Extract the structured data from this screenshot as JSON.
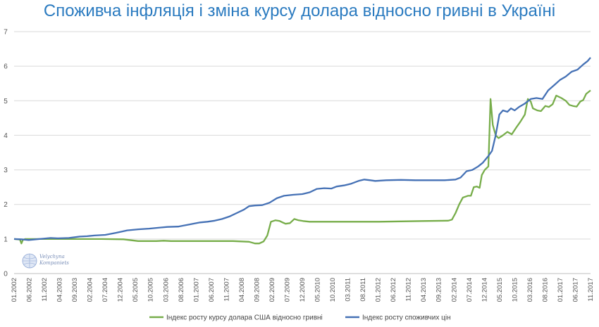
{
  "chart_data": {
    "type": "line",
    "title": "Споживча інфляція і зміна курсу долара відносно гривні в Україні",
    "ylim": [
      0,
      7
    ],
    "yticks": [
      0,
      1,
      2,
      3,
      4,
      5,
      6,
      7
    ],
    "grid": true,
    "legend_position": "bottom",
    "x_tick_labels": [
      "01.2002",
      "06.2002",
      "11.2002",
      "04.2003",
      "09.2003",
      "02.2004",
      "07.2004",
      "12.2004",
      "05.2005",
      "10.2005",
      "03.2006",
      "08.2006",
      "01.2007",
      "06.2007",
      "11.2007",
      "04.2008",
      "09.2008",
      "02.2009",
      "07.2009",
      "12.2009",
      "05.2010",
      "10.2010",
      "03.2011",
      "08.2011",
      "01.2012",
      "06.2012",
      "11.2012",
      "04.2013",
      "09.2013",
      "02.2014",
      "07.2014",
      "12.2014",
      "05.2015",
      "10.2015",
      "03.2016",
      "08.2016",
      "01.2017",
      "06.2017",
      "11.2017"
    ],
    "series": [
      {
        "name": "Індекс росту курсу долара США відносно гривні",
        "color": "#77ad4a",
        "points": [
          [
            0,
            1.0
          ],
          [
            5,
            0.99
          ],
          [
            8,
            0.98
          ],
          [
            10,
            0.87
          ],
          [
            12,
            0.97
          ],
          [
            15,
            1.0
          ],
          [
            30,
            1.0
          ],
          [
            60,
            1.0
          ],
          [
            120,
            1.0
          ],
          [
            150,
            0.99
          ],
          [
            162,
            0.96
          ],
          [
            170,
            0.94
          ],
          [
            195,
            0.94
          ],
          [
            205,
            0.95
          ],
          [
            215,
            0.94
          ],
          [
            250,
            0.94
          ],
          [
            300,
            0.94
          ],
          [
            322,
            0.92
          ],
          [
            330,
            0.87
          ],
          [
            336,
            0.87
          ],
          [
            342,
            0.93
          ],
          [
            347,
            1.1
          ],
          [
            352,
            1.5
          ],
          [
            358,
            1.54
          ],
          [
            364,
            1.52
          ],
          [
            368,
            1.48
          ],
          [
            372,
            1.44
          ],
          [
            378,
            1.46
          ],
          [
            384,
            1.58
          ],
          [
            390,
            1.54
          ],
          [
            396,
            1.52
          ],
          [
            405,
            1.5
          ],
          [
            440,
            1.5
          ],
          [
            500,
            1.5
          ],
          [
            530,
            1.51
          ],
          [
            560,
            1.52
          ],
          [
            595,
            1.53
          ],
          [
            600,
            1.56
          ],
          [
            605,
            1.75
          ],
          [
            610,
            2.0
          ],
          [
            615,
            2.2
          ],
          [
            622,
            2.25
          ],
          [
            626,
            2.25
          ],
          [
            630,
            2.5
          ],
          [
            634,
            2.52
          ],
          [
            638,
            2.48
          ],
          [
            641,
            2.85
          ],
          [
            645,
            3.0
          ],
          [
            650,
            3.1
          ],
          [
            653,
            5.05
          ],
          [
            656,
            4.3
          ],
          [
            660,
            4.0
          ],
          [
            664,
            3.92
          ],
          [
            670,
            4.0
          ],
          [
            676,
            4.1
          ],
          [
            682,
            4.03
          ],
          [
            688,
            4.22
          ],
          [
            694,
            4.4
          ],
          [
            700,
            4.6
          ],
          [
            704,
            5.05
          ],
          [
            708,
            4.98
          ],
          [
            711,
            4.78
          ],
          [
            717,
            4.72
          ],
          [
            722,
            4.7
          ],
          [
            728,
            4.85
          ],
          [
            733,
            4.82
          ],
          [
            738,
            4.9
          ],
          [
            743,
            5.15
          ],
          [
            750,
            5.08
          ],
          [
            756,
            5.0
          ],
          [
            761,
            4.88
          ],
          [
            766,
            4.85
          ],
          [
            771,
            4.83
          ],
          [
            776,
            4.98
          ],
          [
            780,
            5.02
          ],
          [
            784,
            5.2
          ],
          [
            790,
            5.3
          ]
        ]
      },
      {
        "name": "Індекс росту споживчих цін",
        "color": "#4571b5",
        "points": [
          [
            0,
            1.0
          ],
          [
            10,
            0.99
          ],
          [
            20,
            0.97
          ],
          [
            30,
            0.99
          ],
          [
            40,
            1.01
          ],
          [
            50,
            1.03
          ],
          [
            60,
            1.02
          ],
          [
            75,
            1.03
          ],
          [
            90,
            1.07
          ],
          [
            100,
            1.08
          ],
          [
            110,
            1.1
          ],
          [
            125,
            1.12
          ],
          [
            140,
            1.18
          ],
          [
            155,
            1.25
          ],
          [
            170,
            1.28
          ],
          [
            185,
            1.3
          ],
          [
            200,
            1.33
          ],
          [
            210,
            1.35
          ],
          [
            225,
            1.36
          ],
          [
            240,
            1.42
          ],
          [
            255,
            1.48
          ],
          [
            265,
            1.5
          ],
          [
            275,
            1.53
          ],
          [
            285,
            1.58
          ],
          [
            295,
            1.65
          ],
          [
            305,
            1.75
          ],
          [
            315,
            1.85
          ],
          [
            322,
            1.95
          ],
          [
            330,
            1.97
          ],
          [
            340,
            1.98
          ],
          [
            350,
            2.05
          ],
          [
            360,
            2.18
          ],
          [
            370,
            2.25
          ],
          [
            382,
            2.28
          ],
          [
            395,
            2.3
          ],
          [
            405,
            2.35
          ],
          [
            415,
            2.45
          ],
          [
            425,
            2.47
          ],
          [
            435,
            2.46
          ],
          [
            442,
            2.52
          ],
          [
            452,
            2.55
          ],
          [
            462,
            2.6
          ],
          [
            472,
            2.68
          ],
          [
            480,
            2.72
          ],
          [
            488,
            2.7
          ],
          [
            495,
            2.68
          ],
          [
            510,
            2.7
          ],
          [
            530,
            2.71
          ],
          [
            550,
            2.7
          ],
          [
            570,
            2.7
          ],
          [
            590,
            2.7
          ],
          [
            605,
            2.72
          ],
          [
            612,
            2.78
          ],
          [
            620,
            2.96
          ],
          [
            628,
            3.0
          ],
          [
            636,
            3.1
          ],
          [
            642,
            3.2
          ],
          [
            650,
            3.4
          ],
          [
            655,
            3.55
          ],
          [
            660,
            4.0
          ],
          [
            665,
            4.6
          ],
          [
            670,
            4.72
          ],
          [
            676,
            4.68
          ],
          [
            681,
            4.78
          ],
          [
            686,
            4.72
          ],
          [
            692,
            4.82
          ],
          [
            700,
            4.92
          ],
          [
            708,
            5.05
          ],
          [
            716,
            5.08
          ],
          [
            724,
            5.05
          ],
          [
            732,
            5.3
          ],
          [
            740,
            5.45
          ],
          [
            748,
            5.6
          ],
          [
            756,
            5.7
          ],
          [
            764,
            5.84
          ],
          [
            772,
            5.9
          ],
          [
            780,
            6.05
          ],
          [
            786,
            6.15
          ],
          [
            790,
            6.25
          ]
        ]
      }
    ]
  },
  "logo": {
    "line1": "Velychyna",
    "line2": "Kompaniets"
  },
  "colors": {
    "grid": "#d9d9d9",
    "axis": "#bfbfbf",
    "title": "#2b7bc0"
  }
}
